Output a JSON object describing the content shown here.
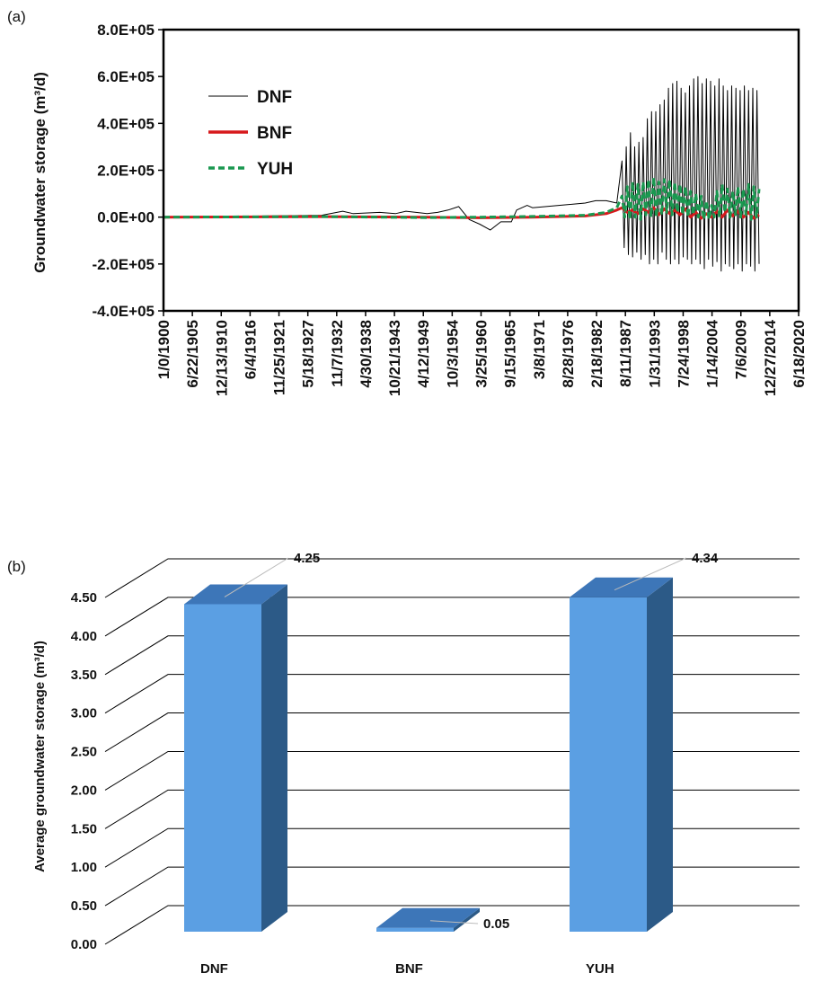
{
  "chart_data": [
    {
      "panel": "(a)",
      "type": "line",
      "ylabel": "Groundwater  storage (m³/d)",
      "ylim": [
        -400000,
        800000
      ],
      "y_ticks": [
        "8.0E+05",
        "6.0E+05",
        "4.0E+05",
        "2.0E+05",
        "0.0E+00",
        "-2.0E+05",
        "-4.0E+05"
      ],
      "x_ticks": [
        "1/0/1900",
        "6/22/1905",
        "12/13/1910",
        "6/4/1916",
        "11/25/1921",
        "5/18/1927",
        "11/7/1932",
        "4/30/1938",
        "10/21/1943",
        "4/12/1949",
        "10/3/1954",
        "3/25/1960",
        "9/15/1965",
        "3/8/1971",
        "8/28/1976",
        "2/18/1982",
        "8/11/1987",
        "1/31/1993",
        "7/24/1998",
        "1/14/2004",
        "7/6/2009",
        "12/27/2014",
        "6/18/2020"
      ],
      "xlim": [
        1900.0,
        2020.5
      ],
      "legend_position": "top-left",
      "series": [
        {
          "name": "DNF",
          "color": "#000000",
          "style": "solid-thin",
          "x": [
            1900,
            1930,
            1934,
            1936,
            1941,
            1944,
            1946,
            1950,
            1952,
            1954,
            1956,
            1958,
            1960,
            1962,
            1964,
            1966,
            1967,
            1969,
            1970,
            1975,
            1980,
            1982,
            1984,
            1986,
            1987.0,
            1987.4,
            1987.8,
            1988.2,
            1988.6,
            1989.0,
            1989.4,
            1989.8,
            1990.2,
            1990.6,
            1991.0,
            1991.4,
            1991.8,
            1992.2,
            1992.6,
            1993.0,
            1993.4,
            1993.8,
            1994.2,
            1994.6,
            1995.0,
            1995.4,
            1995.8,
            1996.2,
            1996.6,
            1997.0,
            1997.4,
            1997.8,
            1998.2,
            1998.6,
            1999.0,
            1999.4,
            1999.8,
            2000.2,
            2000.6,
            2001.0,
            2001.4,
            2001.8,
            2002.2,
            2002.6,
            2003.0,
            2003.4,
            2003.8,
            2004.2,
            2004.6,
            2005.0,
            2005.4,
            2005.8,
            2006.2,
            2006.6,
            2007.0,
            2007.4,
            2007.8,
            2008.2,
            2008.6,
            2009.0,
            2009.4,
            2009.8,
            2010.2,
            2010.6,
            2011.0,
            2011.4,
            2011.8,
            2012.2,
            2012.6,
            2013.0
          ],
          "values": [
            0,
            8000,
            25000,
            15000,
            20000,
            15000,
            25000,
            15000,
            20000,
            30000,
            45000,
            -10000,
            -30000,
            -55000,
            -20000,
            -20000,
            30000,
            50000,
            40000,
            50000,
            60000,
            70000,
            70000,
            60000,
            240000,
            -130000,
            300000,
            -160000,
            360000,
            -170000,
            300000,
            -150000,
            320000,
            -180000,
            340000,
            -160000,
            420000,
            -200000,
            450000,
            -180000,
            450000,
            -200000,
            480000,
            -150000,
            500000,
            -180000,
            550000,
            -200000,
            570000,
            -180000,
            580000,
            -200000,
            550000,
            -170000,
            530000,
            -180000,
            560000,
            -200000,
            590000,
            -180000,
            600000,
            -200000,
            570000,
            -220000,
            590000,
            -180000,
            580000,
            -210000,
            560000,
            -190000,
            590000,
            -230000,
            560000,
            -200000,
            540000,
            -210000,
            560000,
            -220000,
            550000,
            -200000,
            540000,
            -230000,
            560000,
            -200000,
            540000,
            -210000,
            550000,
            -230000,
            540000,
            -200000
          ]
        },
        {
          "name": "BNF",
          "color": "#d7191c",
          "style": "solid-thick",
          "x": [
            1900,
            1930,
            1950,
            1960,
            1970,
            1980,
            1984,
            1986,
            1987,
            1988,
            1989,
            1990,
            1991,
            1992,
            1993,
            1994,
            1995,
            1996,
            1997,
            1998,
            1999,
            2000,
            2001,
            2002,
            2003,
            2004,
            2005,
            2006,
            2007,
            2008,
            2009,
            2010,
            2011,
            2012,
            2013
          ],
          "values": [
            0,
            2000,
            0,
            -3000,
            0,
            5000,
            15000,
            30000,
            40000,
            20000,
            30000,
            15000,
            35000,
            20000,
            40000,
            10000,
            35000,
            15000,
            30000,
            10000,
            35000,
            0,
            20000,
            -5000,
            15000,
            0,
            25000,
            0,
            30000,
            5000,
            25000,
            0,
            20000,
            -5000,
            10000
          ]
        },
        {
          "name": "YUH",
          "color": "#1a9850",
          "style": "dashed-thick",
          "x": [
            1900,
            1930,
            1950,
            1960,
            1970,
            1980,
            1984,
            1986,
            1987.0,
            1987.5,
            1988.0,
            1988.5,
            1989.0,
            1989.5,
            1990.0,
            1990.5,
            1991.0,
            1991.5,
            1992.0,
            1992.5,
            1993.0,
            1993.5,
            1994.0,
            1994.5,
            1995.0,
            1995.5,
            1996.0,
            1996.5,
            1997.0,
            1997.5,
            1998.0,
            1998.5,
            1999.0,
            1999.5,
            2000.0,
            2000.5,
            2001.0,
            2001.5,
            2002.0,
            2002.5,
            2003.0,
            2003.5,
            2004.0,
            2004.5,
            2005.0,
            2005.5,
            2006.0,
            2006.5,
            2007.0,
            2007.5,
            2008.0,
            2008.5,
            2009.0,
            2009.5,
            2010.0,
            2010.5,
            2011.0,
            2011.5,
            2012.0,
            2012.5,
            2013.0
          ],
          "values": [
            0,
            2000,
            -2000,
            0,
            3000,
            8000,
            20000,
            40000,
            90000,
            0,
            130000,
            -10000,
            150000,
            0,
            140000,
            -10000,
            150000,
            10000,
            160000,
            0,
            170000,
            0,
            150000,
            10000,
            160000,
            20000,
            160000,
            10000,
            150000,
            20000,
            140000,
            10000,
            130000,
            0,
            110000,
            10000,
            100000,
            0,
            90000,
            -10000,
            70000,
            -10000,
            50000,
            0,
            110000,
            0,
            140000,
            20000,
            120000,
            0,
            110000,
            10000,
            130000,
            0,
            120000,
            10000,
            140000,
            -10000,
            130000,
            0,
            120000
          ]
        }
      ]
    },
    {
      "panel": "(b)",
      "type": "bar",
      "style": "3d",
      "ylabel": "Average groundwater storage (m³/d)",
      "ylim": [
        0,
        4.5
      ],
      "y_ticks": [
        "4.50",
        "4.00",
        "3.50",
        "3.00",
        "2.50",
        "2.00",
        "1.50",
        "1.00",
        "0.50",
        "0.00"
      ],
      "categories": [
        "DNF",
        "BNF",
        "YUH"
      ],
      "values": [
        4.25,
        0.05,
        4.34
      ],
      "data_labels": [
        "4.25",
        "0.05",
        "4.34"
      ],
      "bar_colors": {
        "front": "#5b9fe3",
        "top": "#3d76b8",
        "side": "#2c5a87"
      }
    }
  ]
}
